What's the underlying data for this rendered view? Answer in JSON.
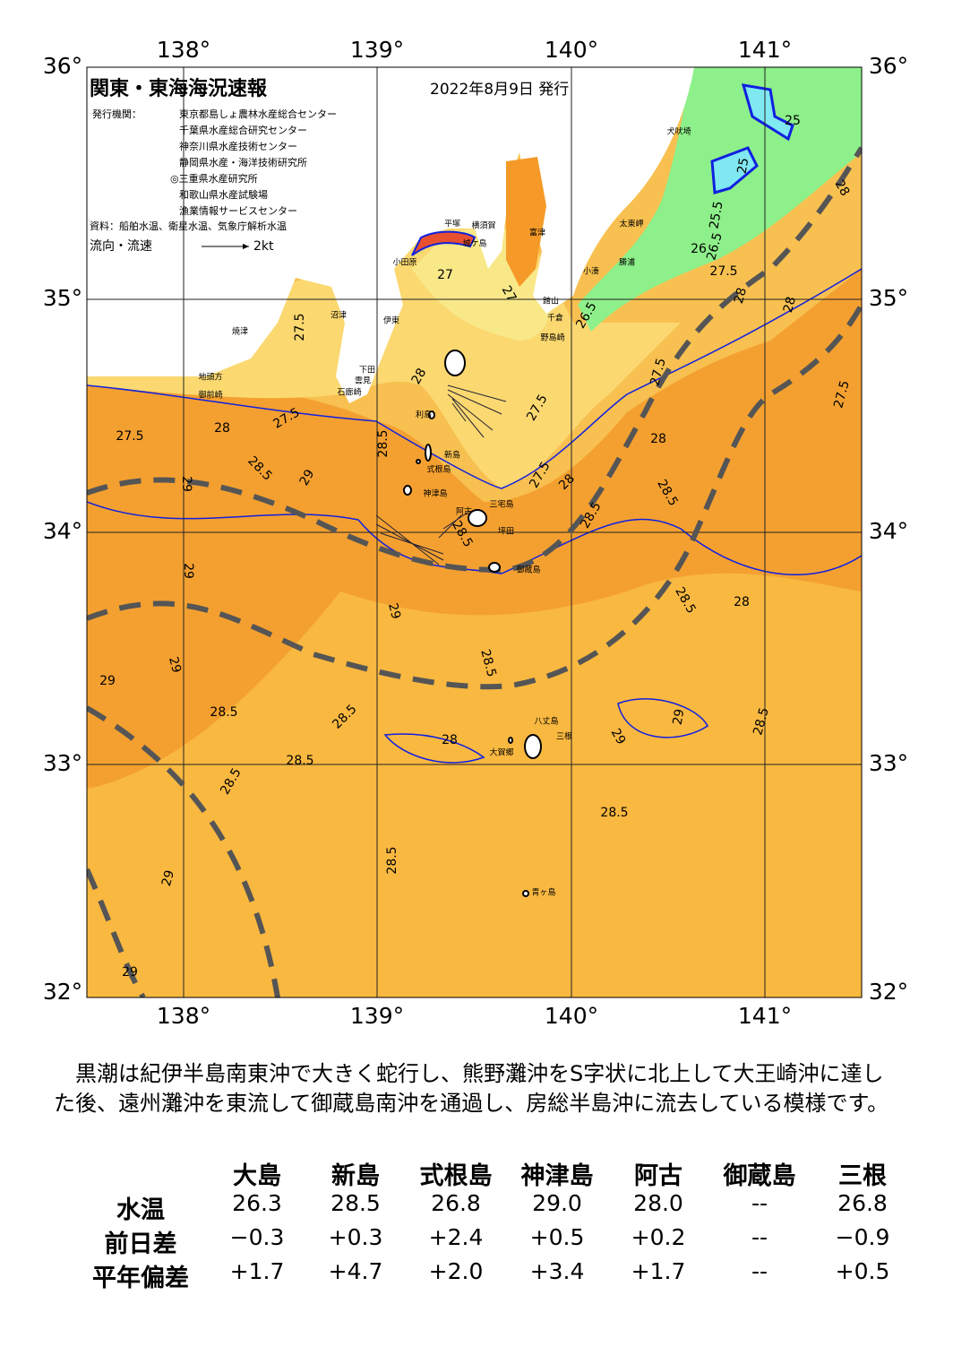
{
  "map": {
    "title": "関東・東海海況速報",
    "date": "2022年8月9日 発行",
    "issuer_label": "発行機関：",
    "issuers": [
      "東京都島しょ農林水産総合センター",
      "千葉県水産総合研究センター",
      "神奈川県水産技術センター",
      "静岡県水産・海洋技術研究所",
      "◎三重県水産研究所",
      "和歌山県水産試験場",
      "漁業情報サービスセンター"
    ],
    "source": "資料：船舶水温、衛星水温、気象庁解析水温",
    "legend_label": "流向・流速",
    "legend_speed": "2kt",
    "lon_ticks": [
      "138°",
      "139°",
      "140°",
      "141°"
    ],
    "lat_ticks": [
      "36°",
      "35°",
      "34°",
      "33°",
      "32°"
    ],
    "places": [
      "犬吠埼",
      "太東岬",
      "勝浦",
      "小湊",
      "富津",
      "館山",
      "千倉",
      "野島崎",
      "平塚",
      "横須賀",
      "城ケ島",
      "小田原",
      "沼津",
      "伊東",
      "焼津",
      "地頭方",
      "御前崎",
      "雲見",
      "下田",
      "石廊崎",
      "利島",
      "新島",
      "式根島",
      "神津島",
      "三宅島",
      "阿古",
      "坪田",
      "御蔵島",
      "八丈島",
      "三根",
      "大賀郷",
      "青ヶ島"
    ],
    "contour_labels": [
      "27.5",
      "27.5",
      "27.5",
      "28",
      "28.5",
      "29",
      "29",
      "29",
      "28.5",
      "28",
      "27",
      "27",
      "26.5",
      "27.5",
      "27.5",
      "28",
      "28.5",
      "28",
      "28.5",
      "27.5",
      "27.5",
      "28",
      "28",
      "28",
      "27.5",
      "26.5",
      "26",
      "25.5",
      "25",
      "25",
      "28.5",
      "28",
      "29",
      "29",
      "29",
      "28.5",
      "28.5",
      "28.5",
      "28.5",
      "28.5",
      "28",
      "29",
      "29",
      "28.5",
      "28.5",
      "28.5",
      "29",
      "29",
      "28.5"
    ]
  },
  "summary": "黒潮は紀伊半島南東沖で大きく蛇行し、熊野灘沖をS字状に北上して大王崎沖に達した後、遠州灘沖を東流して御蔵島南沖を通過し、房総半島沖に流去している模様です。",
  "table": {
    "columns": [
      "大島",
      "新島",
      "式根島",
      "神津島",
      "阿古",
      "御蔵島",
      "三根"
    ],
    "rows": [
      {
        "label": "水温",
        "values": [
          "26.3",
          "28.5",
          "26.8",
          "29.0",
          "28.0",
          "--",
          "26.8"
        ]
      },
      {
        "label": "前日差",
        "values": [
          "−0.3",
          "+0.3",
          "+2.4",
          "+0.5",
          "+0.2",
          "--",
          "−0.9"
        ]
      },
      {
        "label": "平年偏差",
        "values": [
          "+1.7",
          "+4.7",
          "+2.0",
          "+3.4",
          "+1.7",
          "--",
          "+0.5"
        ]
      }
    ]
  }
}
